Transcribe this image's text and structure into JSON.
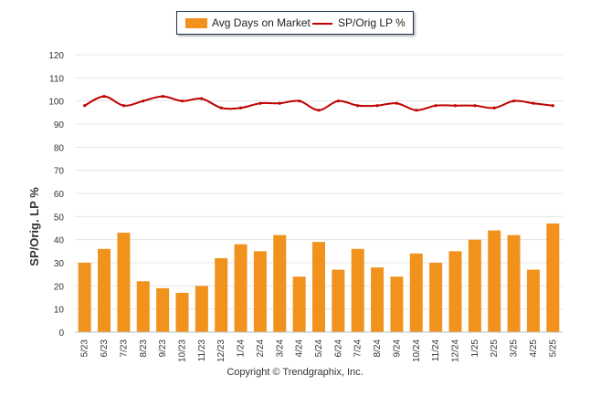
{
  "legend": {
    "bar_label": "Avg Days on Market",
    "line_label": "SP/Orig LP %"
  },
  "footer": {
    "copyright": "Copyright © Trendgraphix, Inc."
  },
  "colors": {
    "bar": "#f0921c",
    "line": "#c00000",
    "grid": "#e6e6e6"
  },
  "chart_data": {
    "type": "bar",
    "title": "",
    "xlabel": "",
    "ylabel": "SP/Orig. LP %",
    "ylim": [
      0,
      120
    ],
    "yticks": [
      0,
      10,
      20,
      30,
      40,
      50,
      60,
      70,
      80,
      90,
      100,
      110,
      120
    ],
    "grid": true,
    "legend_position": "top-center",
    "categories": [
      "5/23",
      "6/23",
      "7/23",
      "8/23",
      "9/23",
      "10/23",
      "11/23",
      "12/23",
      "1/24",
      "2/24",
      "3/24",
      "4/24",
      "5/24",
      "6/24",
      "7/24",
      "8/24",
      "9/24",
      "10/24",
      "11/24",
      "12/24",
      "1/25",
      "2/25",
      "3/25",
      "4/25",
      "5/25"
    ],
    "series": [
      {
        "name": "Avg Days on Market",
        "type": "bar",
        "values": [
          30,
          36,
          43,
          22,
          19,
          17,
          20,
          32,
          38,
          35,
          42,
          24,
          39,
          27,
          36,
          28,
          24,
          34,
          30,
          35,
          40,
          44,
          42,
          27,
          47
        ]
      },
      {
        "name": "SP/Orig LP %",
        "type": "line",
        "values": [
          98,
          102,
          98,
          100,
          102,
          100,
          101,
          97,
          97,
          99,
          99,
          100,
          96,
          100,
          98,
          98,
          99,
          96,
          98,
          98,
          98,
          97,
          100,
          99,
          98
        ]
      }
    ]
  }
}
